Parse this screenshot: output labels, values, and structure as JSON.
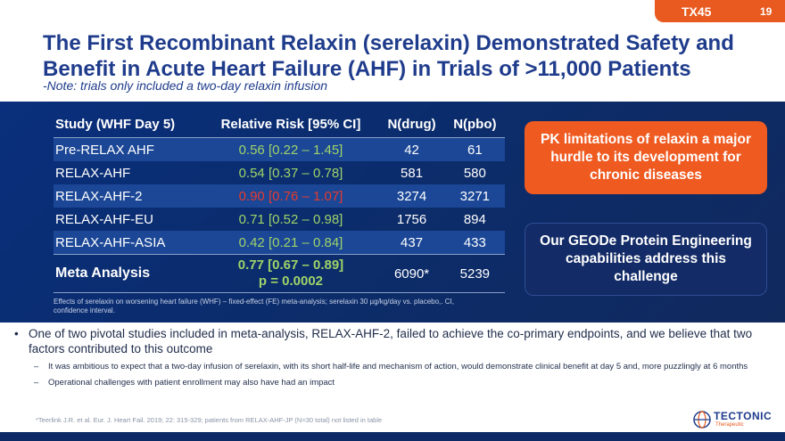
{
  "header": {
    "code": "TX45",
    "page": "19"
  },
  "title": "The First Recombinant Relaxin (serelaxin) Demonstrated Safety and Benefit in Acute Heart Failure (AHF) in Trials of >11,000 Patients",
  "subtitle": "-Note: trials only included a two-day relaxin infusion",
  "table": {
    "headers": [
      "Study (WHF Day 5)",
      "Relative Risk [95% CI]",
      "N(drug)",
      "N(pbo)"
    ],
    "rows": [
      {
        "study": "Pre-RELAX AHF",
        "rr": "0.56 [0.22 – 1.45]",
        "ndrug": "42",
        "npbo": "61"
      },
      {
        "study": "RELAX-AHF",
        "rr": "0.54 [0.37 – 0.78]",
        "ndrug": "581",
        "npbo": "580"
      },
      {
        "study": "RELAX-AHF-2",
        "rr": "0.90 [0.76 – 1.07]",
        "ndrug": "3274",
        "npbo": "3271"
      },
      {
        "study": "RELAX-AHF-EU",
        "rr": "0.71 [0.52 – 0.98]",
        "ndrug": "1756",
        "npbo": "894"
      },
      {
        "study": "RELAX-AHF-ASIA",
        "rr": "0.42 [0.21 – 0.84]",
        "ndrug": "437",
        "npbo": "433"
      }
    ],
    "meta": {
      "study": "Meta Analysis",
      "rr_line1": "0.77 [0.67 – 0.89]",
      "rr_line2": "p = 0.0002",
      "ndrug": "6090*",
      "npbo": "5239"
    },
    "footnote": "Effects of serelaxin on worsening heart failure (WHF) – fixed-effect (FE) meta-analysis; serelaxin 30 µg/kg/day vs. placebo,. CI, confidence interval."
  },
  "callouts": {
    "pk": "PK limitations of relaxin a major hurdle to its development for chronic diseases",
    "geode": "Our GEODe Protein Engineering capabilities address this challenge"
  },
  "bullets": {
    "main": "One of two pivotal studies included in meta-analysis, RELAX-AHF-2, failed to achieve the co-primary endpoints, and we believe that two factors contributed to this outcome",
    "sub1": "It was ambitious to expect that a two-day infusion of serelaxin, with its short half-life and mechanism of action, would demonstrate clinical benefit at day 5 and, more puzzlingly at 6 months",
    "sub2": "Operational challenges with patient enrollment may also have had an impact"
  },
  "reference": "*Teerlink J.R. et al. Eur. J. Heart Fail. 2019; 22: 315-329; patients from RELAX-AHF-JP (N=30 total) not listed in table",
  "logo": {
    "name": "TECTONIC",
    "tagline": "Therapeutic"
  },
  "colors": {
    "navy": "#1f3c8c",
    "orange": "#e85a1f",
    "green": "#9ed36a",
    "red": "#e53a2d"
  }
}
